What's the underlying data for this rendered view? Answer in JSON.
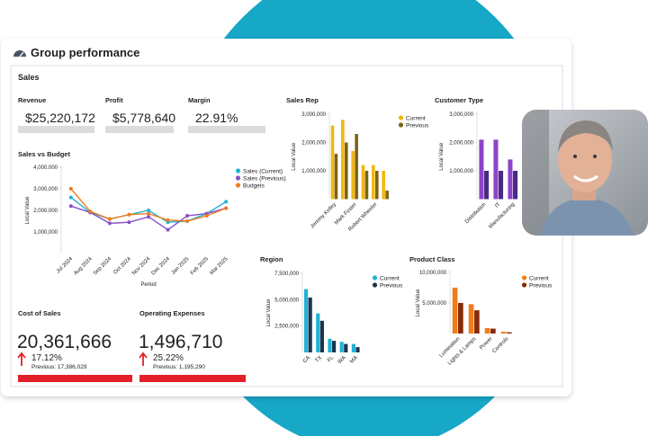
{
  "header": {
    "title": "Group performance",
    "section": "Sales"
  },
  "kpis": [
    {
      "label": "Revenue",
      "value": "$25,220,172"
    },
    {
      "label": "Profit",
      "value": "$5,778,640"
    },
    {
      "label": "Margin",
      "value": "22.91%"
    }
  ],
  "changes": [
    {
      "label": "Cost of Sales",
      "value": "20,361,666",
      "change": "17.12%",
      "previous": "Previous: 17,386,029"
    },
    {
      "label": "Operating Expenses",
      "value": "1,496,710",
      "change": "25.22%",
      "previous": "Previous: 1,195,290"
    }
  ],
  "chart_data": [
    {
      "type": "line",
      "title": "Sales vs Budget",
      "x_label": "Period",
      "y_label": "Local Value",
      "categories": [
        "Jul 2024",
        "Aug 2024",
        "Sep 2024",
        "Oct 2024",
        "Nov 2024",
        "Dec 2024",
        "Jan 2025",
        "Feb 2025",
        "Mar 2025"
      ],
      "series": [
        {
          "name": "Sales (Current)",
          "color": "#22b2d5",
          "values": [
            2600000,
            1900000,
            1600000,
            1800000,
            2000000,
            1450000,
            1500000,
            1850000,
            2400000
          ]
        },
        {
          "name": "Sales (Previous)",
          "color": "#8a4fc8",
          "values": [
            2200000,
            1900000,
            1400000,
            1450000,
            1700000,
            1100000,
            1750000,
            1850000,
            2100000
          ]
        },
        {
          "name": "Budgets",
          "color": "#f07d1c",
          "values": [
            3000000,
            1950000,
            1600000,
            1800000,
            1850000,
            1550000,
            1500000,
            1750000,
            2100000
          ]
        }
      ],
      "ylim": [
        0,
        4000000
      ],
      "yticks": [
        {
          "value": 1000000,
          "label": "1,000,000"
        },
        {
          "value": 2000000,
          "label": "2,000,000"
        },
        {
          "value": 3000000,
          "label": "3,000,000"
        },
        {
          "value": 4000000,
          "label": "4,000,000"
        }
      ]
    },
    {
      "type": "bar",
      "title": "Sales Rep",
      "y_label": "Local Value",
      "categories": [
        "Jeremy Kelley",
        null,
        "Mark Foster",
        null,
        "Robert Wheeler",
        null
      ],
      "series": [
        {
          "name": "Current",
          "color": "#f2b70f",
          "values": [
            2600000,
            2800000,
            1700000,
            1200000,
            1200000,
            1000000
          ]
        },
        {
          "name": "Previous",
          "color": "#7b6414",
          "values": [
            1600000,
            2000000,
            2300000,
            1000000,
            1000000,
            300000
          ]
        }
      ],
      "ylim": [
        0,
        3000000
      ],
      "yticks": [
        {
          "value": 1000000,
          "label": "1,000,000"
        },
        {
          "value": 2000000,
          "label": "2,000,000"
        },
        {
          "value": 3000000,
          "label": "3,000,000"
        }
      ]
    },
    {
      "type": "bar",
      "title": "Customer Type",
      "y_label": "Local Value",
      "categories": [
        "Distribution",
        "IT",
        "Manufacturing"
      ],
      "series": [
        {
          "name": "Current",
          "color": "#8e44c9",
          "values": [
            2100000,
            2100000,
            1400000
          ]
        },
        {
          "name": "Previous",
          "color": "#4b2a85",
          "values": [
            1000000,
            1000000,
            1000000
          ]
        }
      ],
      "ylim": [
        0,
        3000000
      ],
      "yticks": [
        {
          "value": 1000000,
          "label": "1,000,000"
        },
        {
          "value": 2000000,
          "label": "2,000,000"
        },
        {
          "value": 3000000,
          "label": "3,000,000"
        }
      ]
    },
    {
      "type": "bar",
      "title": "Region",
      "y_label": "Local Value",
      "categories": [
        "CA",
        "TX",
        "FL",
        "WA",
        "MA"
      ],
      "series": [
        {
          "name": "Current",
          "color": "#22b2d5",
          "values": [
            6000000,
            3700000,
            1300000,
            1000000,
            800000
          ]
        },
        {
          "name": "Previous",
          "color": "#1b3551",
          "values": [
            5200000,
            3000000,
            1100000,
            800000,
            500000
          ]
        }
      ],
      "ylim": [
        0,
        7500000
      ],
      "yticks": [
        {
          "value": 2500000,
          "label": "2,500,000"
        },
        {
          "value": 5000000,
          "label": "5,000,000"
        },
        {
          "value": 7500000,
          "label": "7,500,000"
        }
      ]
    },
    {
      "type": "bar",
      "title": "Product Class",
      "y_label": "Local Value",
      "categories": [
        "Lumination",
        "Lights & Lamps",
        "Power",
        "Controls"
      ],
      "series": [
        {
          "name": "Current",
          "color": "#f07d1c",
          "values": [
            7500000,
            4800000,
            900000,
            300000
          ]
        },
        {
          "name": "Previous",
          "color": "#8a2a06",
          "values": [
            5000000,
            3800000,
            800000,
            200000
          ]
        }
      ],
      "ylim": [
        0,
        10000000
      ],
      "yticks": [
        {
          "value": 5000000,
          "label": "5,000,000"
        },
        {
          "value": 10000000,
          "label": "10,000,000"
        }
      ]
    }
  ]
}
